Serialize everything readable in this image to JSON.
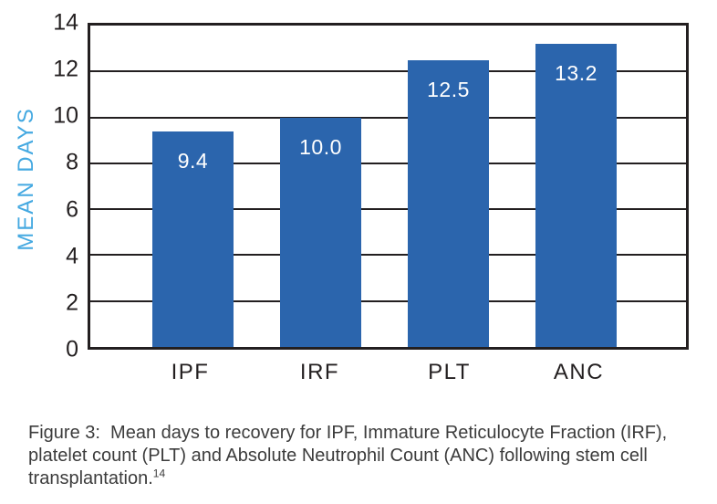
{
  "chart_data": {
    "type": "bar",
    "title": "",
    "categories": [
      "IPF",
      "IRF",
      "PLT",
      "ANC"
    ],
    "values": [
      9.4,
      10.0,
      12.5,
      13.2
    ],
    "value_labels": [
      "9.4",
      "10.0",
      "12.5",
      "13.2"
    ],
    "xlabel": "",
    "ylabel": "MEAN DAYS",
    "ylim": [
      0,
      14
    ],
    "yticks": [
      0,
      2,
      4,
      6,
      8,
      10,
      12,
      14
    ],
    "grid": "horizontal",
    "legend": "none",
    "colors": {
      "bar": "#2b65ad",
      "value_label": "#ffffff",
      "ylabel": "#45a9e1",
      "axis": "#231f20"
    }
  },
  "caption": {
    "line1": "Figure 3:  Mean days to recovery for IPF, Immature Reticulocyte Fraction (IRF),",
    "line2": "platelet count (PLT) and Absolute Neutrophil Count (ANC) following stem cell",
    "line3": "transplantation.",
    "reference_superscript": "14"
  }
}
